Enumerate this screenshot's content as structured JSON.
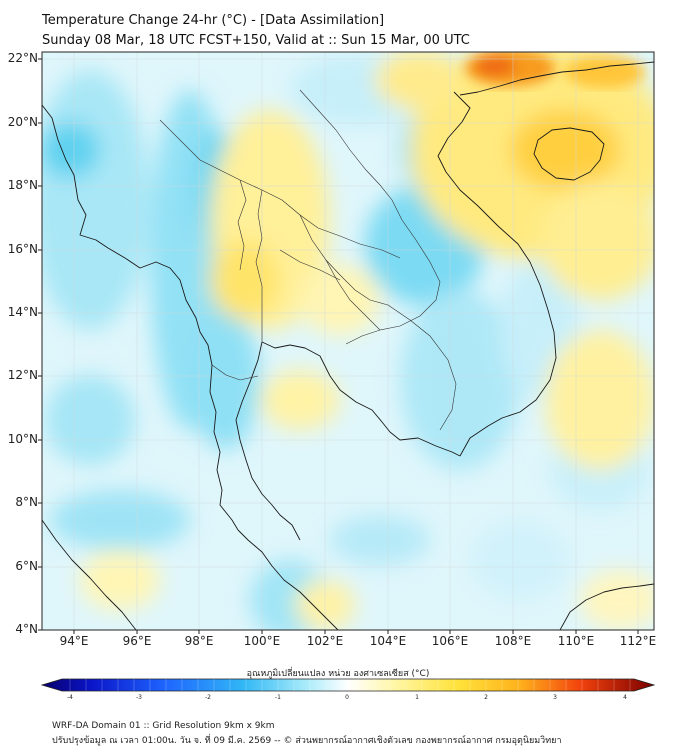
{
  "header": {
    "title_line1": "Temperature Change 24-hr (°C) - [Data Assimilation]",
    "title_line2": "Sunday 08 Mar, 18 UTC FCST+150, Valid at :: Sun 15 Mar, 00 UTC"
  },
  "map": {
    "lat_range": [
      4,
      22.2
    ],
    "lon_range": [
      93,
      112.5
    ],
    "lat_labels": [
      "22°N",
      "20°N",
      "18°N",
      "16°N",
      "14°N",
      "12°N",
      "10°N",
      "8°N",
      "6°N",
      "4°N"
    ],
    "lon_labels": [
      "94°E",
      "96°E",
      "98°E",
      "100°E",
      "102°E",
      "104°E",
      "106°E",
      "108°E",
      "110°E",
      "112°E"
    ]
  },
  "colorbar": {
    "title": "อุณหภูมิเปลี่ยนแปลง หน่วย องศาเซลเซียส (°C)",
    "min": -4,
    "max": 4,
    "ticks": [
      "-4",
      "-3",
      "-2",
      "-1",
      "0",
      "1",
      "2",
      "3",
      "4"
    ],
    "colors": {
      "cold_extreme": "#08006b",
      "cold": "#1e40ff",
      "cool": "#3fd0f2",
      "neutral": "#ffffff",
      "warm": "#fff27a",
      "hot": "#ff9a16",
      "hot_extreme": "#7a0000"
    }
  },
  "footer": {
    "line1": "WRF-DA Domain 01 :: Grid Resolution 9km x 9km",
    "line2": "ปรับปรุงข้อมูล ณ เวลา 01:00น. วัน จ. ที่ 09 มี.ค. 2569 -- © ส่วนพยากรณ์อากาศเชิงตัวเลข กองพยากรณ์อากาศ กรมอุตุนิยมวิทยา"
  }
}
